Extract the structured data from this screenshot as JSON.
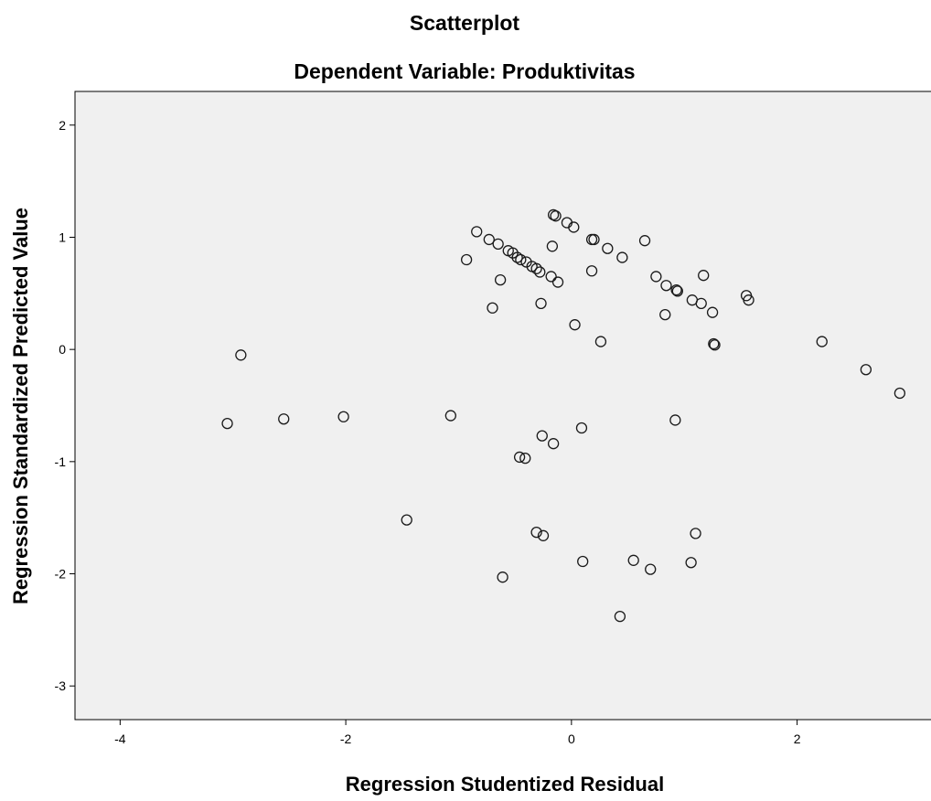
{
  "chart_data": {
    "type": "scatter",
    "title": "Scatterplot",
    "subtitle": "Dependent Variable: Produktivitas",
    "xlabel": "Regression Studentized Residual",
    "ylabel": "Regression Standardized Predicted Value",
    "xlim": [
      -4.4,
      3.3
    ],
    "ylim": [
      -3.3,
      2.3
    ],
    "xticks": [
      -4,
      -2,
      0,
      2
    ],
    "xtick_labels": [
      "-4",
      "-2",
      "0",
      "2"
    ],
    "yticks": [
      2,
      1,
      0,
      -1,
      -2,
      -3
    ],
    "ytick_labels": [
      "2",
      "1",
      "0",
      "-1",
      "-2",
      "-3"
    ],
    "grid": false,
    "legend": "none",
    "colors": {
      "plot_background": "#f0f0f0",
      "marker_stroke": "#1a1a1a"
    },
    "points": [
      {
        "x": -3.05,
        "y": -0.66
      },
      {
        "x": -2.93,
        "y": -0.05
      },
      {
        "x": -2.55,
        "y": -0.62
      },
      {
        "x": -2.02,
        "y": -0.6
      },
      {
        "x": -1.46,
        "y": -1.52
      },
      {
        "x": -1.07,
        "y": -0.59
      },
      {
        "x": -0.93,
        "y": 0.8
      },
      {
        "x": -0.84,
        "y": 1.05
      },
      {
        "x": -0.73,
        "y": 0.98
      },
      {
        "x": -0.7,
        "y": 0.37
      },
      {
        "x": -0.65,
        "y": 0.94
      },
      {
        "x": -0.63,
        "y": 0.62
      },
      {
        "x": -0.61,
        "y": -2.03
      },
      {
        "x": -0.56,
        "y": 0.88
      },
      {
        "x": -0.52,
        "y": 0.86
      },
      {
        "x": -0.48,
        "y": 0.82
      },
      {
        "x": -0.46,
        "y": -0.96
      },
      {
        "x": -0.45,
        "y": 0.8
      },
      {
        "x": -0.41,
        "y": -0.97
      },
      {
        "x": -0.4,
        "y": 0.78
      },
      {
        "x": -0.35,
        "y": 0.74
      },
      {
        "x": -0.31,
        "y": 0.72
      },
      {
        "x": -0.31,
        "y": -1.63
      },
      {
        "x": -0.28,
        "y": 0.69
      },
      {
        "x": -0.27,
        "y": 0.41
      },
      {
        "x": -0.26,
        "y": -0.77
      },
      {
        "x": -0.25,
        "y": -1.66
      },
      {
        "x": -0.18,
        "y": 0.65
      },
      {
        "x": -0.17,
        "y": 0.92
      },
      {
        "x": -0.16,
        "y": -0.84
      },
      {
        "x": -0.16,
        "y": 1.2
      },
      {
        "x": -0.14,
        "y": 1.19
      },
      {
        "x": -0.12,
        "y": 0.6
      },
      {
        "x": -0.04,
        "y": 1.13
      },
      {
        "x": 0.02,
        "y": 1.09
      },
      {
        "x": 0.03,
        "y": 0.22
      },
      {
        "x": 0.09,
        "y": -0.7
      },
      {
        "x": 0.1,
        "y": -1.89
      },
      {
        "x": 0.18,
        "y": 0.7
      },
      {
        "x": 0.18,
        "y": 0.98
      },
      {
        "x": 0.2,
        "y": 0.98
      },
      {
        "x": 0.26,
        "y": 0.07
      },
      {
        "x": 0.32,
        "y": 0.9
      },
      {
        "x": 0.43,
        "y": -2.38
      },
      {
        "x": 0.45,
        "y": 0.82
      },
      {
        "x": 0.55,
        "y": -1.88
      },
      {
        "x": 0.65,
        "y": 0.97
      },
      {
        "x": 0.7,
        "y": -1.96
      },
      {
        "x": 0.75,
        "y": 0.65
      },
      {
        "x": 0.83,
        "y": 0.31
      },
      {
        "x": 0.84,
        "y": 0.57
      },
      {
        "x": 0.92,
        "y": -0.63
      },
      {
        "x": 0.93,
        "y": 0.53
      },
      {
        "x": 0.94,
        "y": 0.52
      },
      {
        "x": 1.06,
        "y": -1.9
      },
      {
        "x": 1.07,
        "y": 0.44
      },
      {
        "x": 1.1,
        "y": -1.64
      },
      {
        "x": 1.15,
        "y": 0.41
      },
      {
        "x": 1.17,
        "y": 0.66
      },
      {
        "x": 1.25,
        "y": 0.33
      },
      {
        "x": 1.26,
        "y": 0.05
      },
      {
        "x": 1.27,
        "y": 0.04
      },
      {
        "x": 1.55,
        "y": 0.48
      },
      {
        "x": 1.57,
        "y": 0.44
      },
      {
        "x": 2.22,
        "y": 0.07
      },
      {
        "x": 2.61,
        "y": -0.18
      },
      {
        "x": 2.91,
        "y": -0.39
      }
    ]
  }
}
